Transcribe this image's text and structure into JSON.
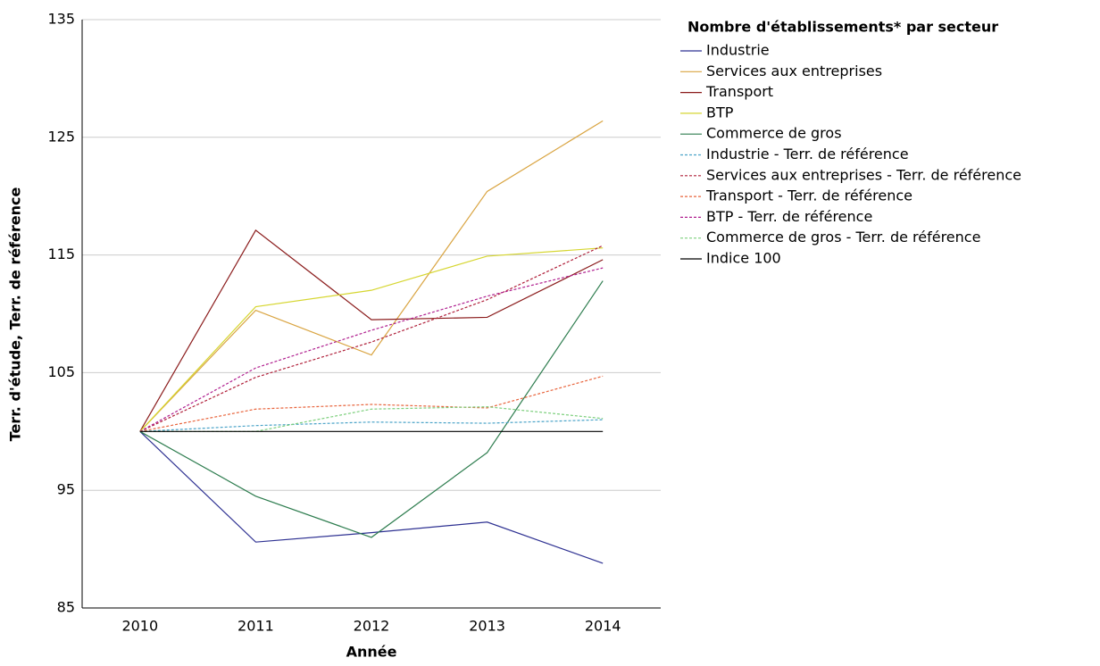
{
  "chart_data": {
    "type": "line",
    "legend_title": "Nombre d'établissements* par secteur",
    "x_label": "Année",
    "y_label": "Terr. d'étude, Terr. de référence",
    "categories": [
      "2010",
      "2011",
      "2012",
      "2013",
      "2014"
    ],
    "series": [
      {
        "name": "Industrie",
        "color": "#2e3192",
        "dashed": false,
        "values": [
          100,
          90.6,
          91.4,
          92.3,
          88.8
        ]
      },
      {
        "name": "Services aux entreprises",
        "color": "#d9a441",
        "dashed": false,
        "values": [
          100,
          110.3,
          106.5,
          120.4,
          126.4
        ]
      },
      {
        "name": "Transport",
        "color": "#8b1c1c",
        "dashed": false,
        "values": [
          100,
          117.1,
          109.5,
          109.7,
          114.6
        ]
      },
      {
        "name": "BTP",
        "color": "#d6d630",
        "dashed": false,
        "values": [
          100,
          110.6,
          112.0,
          114.9,
          115.6
        ]
      },
      {
        "name": "Commerce de gros",
        "color": "#2e7d4f",
        "dashed": false,
        "values": [
          100,
          94.5,
          91.0,
          98.2,
          112.8
        ]
      },
      {
        "name": "Industrie - Terr. de référence",
        "color": "#4aa3c8",
        "dashed": true,
        "values": [
          100,
          100.5,
          100.8,
          100.7,
          101.0
        ]
      },
      {
        "name": "Services aux entreprises - Terr. de référence",
        "color": "#b0203a",
        "dashed": true,
        "values": [
          100,
          104.6,
          107.6,
          111.2,
          115.8
        ]
      },
      {
        "name": "Transport - Terr. de référence",
        "color": "#e8643c",
        "dashed": true,
        "values": [
          100,
          101.9,
          102.3,
          102.0,
          104.7
        ]
      },
      {
        "name": "BTP - Terr. de référence",
        "color": "#b0208f",
        "dashed": true,
        "values": [
          100,
          105.4,
          108.6,
          111.5,
          113.9
        ]
      },
      {
        "name": "Commerce de gros - Terr. de référence",
        "color": "#7ccf7c",
        "dashed": true,
        "values": [
          100,
          100.0,
          101.9,
          102.1,
          101.1
        ]
      },
      {
        "name": "Indice 100",
        "color": "#000000",
        "dashed": false,
        "values": [
          100,
          100,
          100,
          100,
          100
        ]
      }
    ],
    "ylim": [
      85,
      135
    ],
    "yticks": [
      85,
      95,
      105,
      115,
      125,
      135
    ],
    "grid": true
  }
}
